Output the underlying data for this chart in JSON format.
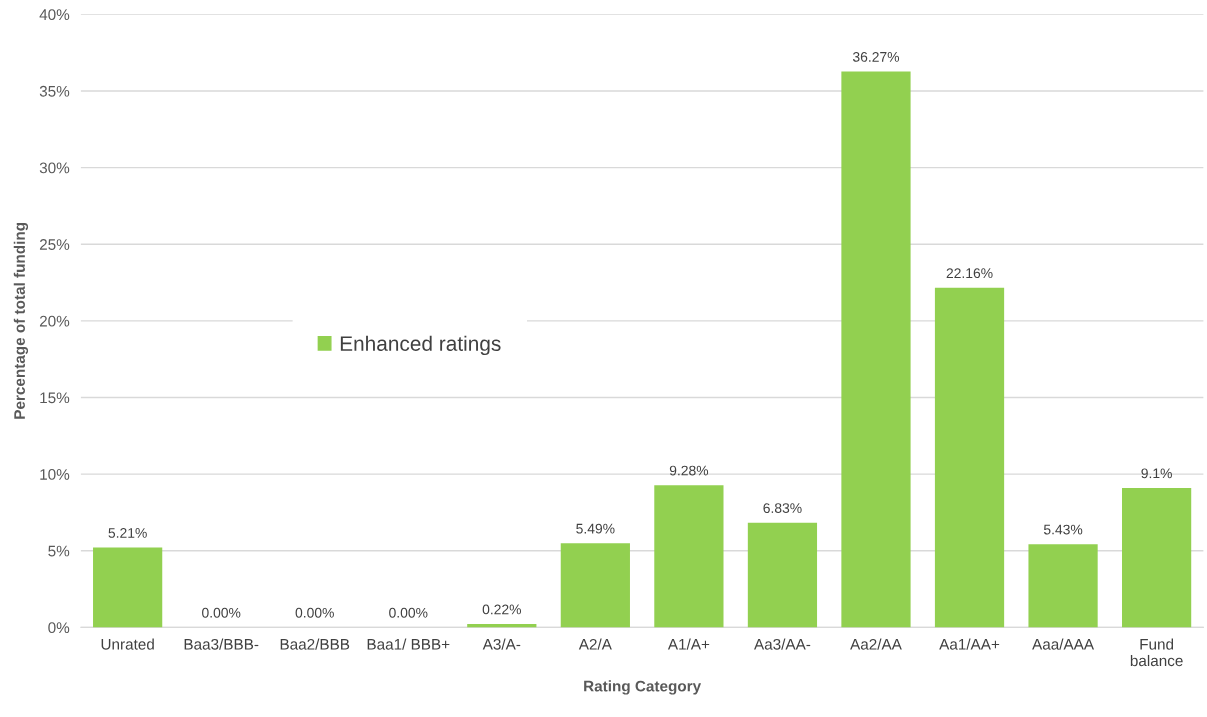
{
  "chart_data": {
    "type": "bar",
    "xlabel": "Rating Category",
    "ylabel": "Percentage of total funding",
    "categories": [
      "Unrated",
      "Baa3/BBB-",
      "Baa2/BBB",
      "Baa1/ BBB+",
      "A3/A-",
      "A2/A",
      "A1/A+",
      "Aa3/AA-",
      "Aa2/AA",
      "Aa1/AA+",
      "Aaa/AAA",
      "Fund balance"
    ],
    "series": [
      {
        "name": "Enhanced ratings",
        "color": "#92d050",
        "values": [
          5.21,
          0,
          0,
          0,
          0.22,
          5.49,
          9.28,
          6.83,
          36.27,
          22.16,
          5.43,
          9.1
        ],
        "value_labels": [
          "5.21%",
          "0.00%",
          "0.00%",
          "0.00%",
          "0.22%",
          "5.49%",
          "9.28%",
          "6.83%",
          "36.27%",
          "22.16%",
          "5.43%",
          "9.1%"
        ]
      }
    ],
    "ylim": [
      0,
      40
    ],
    "yticks": [
      {
        "value": 0,
        "label": "0%"
      },
      {
        "value": 5,
        "label": "5%"
      },
      {
        "value": 10,
        "label": "10%"
      },
      {
        "value": 15,
        "label": "15%"
      },
      {
        "value": 20,
        "label": "20%"
      },
      {
        "value": 25,
        "label": "25%"
      },
      {
        "value": 30,
        "label": "30%"
      },
      {
        "value": 35,
        "label": "35%"
      },
      {
        "value": 40,
        "label": "40%"
      }
    ],
    "grid": "y",
    "legend": "left"
  }
}
